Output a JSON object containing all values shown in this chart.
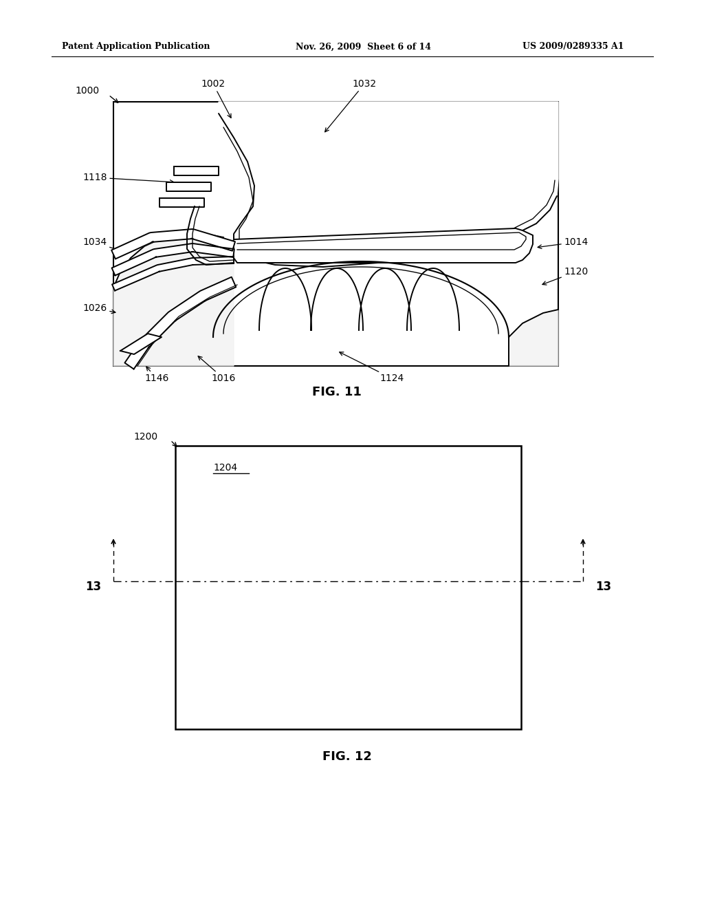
{
  "bg_color": "#ffffff",
  "header_left": "Patent Application Publication",
  "header_mid": "Nov. 26, 2009  Sheet 6 of 14",
  "header_right": "US 2009/0289335 A1",
  "fig11_label": "FIG. 11",
  "fig12_label": "FIG. 12"
}
